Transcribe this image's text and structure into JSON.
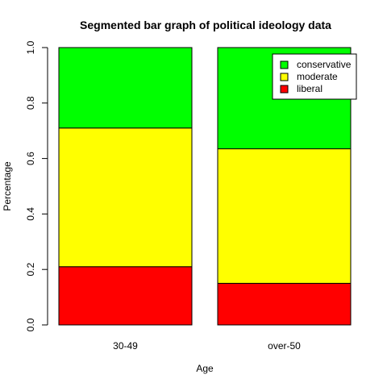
{
  "chart_data": {
    "type": "bar",
    "stacked": true,
    "normalized": true,
    "title": "Segmented bar graph of political ideology data",
    "xlabel": "Age",
    "ylabel": "Percentage",
    "categories": [
      "30-49",
      "over-50"
    ],
    "ylim": [
      0,
      1
    ],
    "yticks": [
      "0.0",
      "0.2",
      "0.4",
      "0.6",
      "0.8",
      "1.0"
    ],
    "ytick_values": [
      0,
      0.2,
      0.4,
      0.6,
      0.8,
      1.0
    ],
    "grid": false,
    "legend_position": "top-right",
    "series": [
      {
        "name": "liberal",
        "color": "#ff0000",
        "values": [
          0.21,
          0.15
        ]
      },
      {
        "name": "moderate",
        "color": "#ffff00",
        "values": [
          0.5,
          0.485
        ]
      },
      {
        "name": "conservative",
        "color": "#00ff00",
        "values": [
          0.29,
          0.365
        ]
      }
    ],
    "legend_order": [
      "conservative",
      "moderate",
      "liberal"
    ]
  }
}
